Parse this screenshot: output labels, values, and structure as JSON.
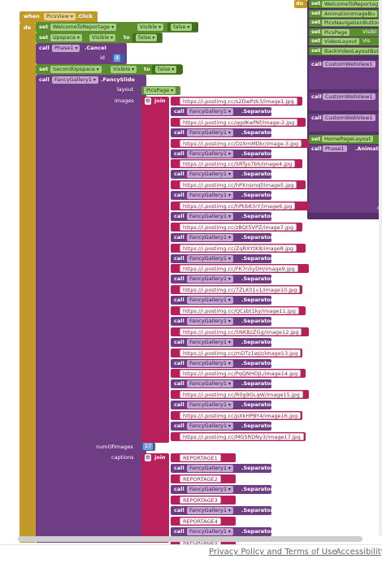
{
  "event": {
    "when": "when",
    "component": "PicsView",
    "event": ".Click",
    "do": "do"
  },
  "sets": [
    {
      "kw": "set",
      "component": "WelcomeToReportage",
      "prop": "Visible",
      "to": "to",
      "value": "false"
    },
    {
      "kw": "set",
      "component": "Upspace",
      "prop": "Visible",
      "to": "to",
      "value": "false"
    }
  ],
  "call_cancel": {
    "kw": "call",
    "component": "Phase1",
    "method": ".Cancel",
    "param": "id",
    "value": "4"
  },
  "set_second": {
    "kw": "set",
    "component": "SecondUpspace",
    "prop": "Visible",
    "to": "to",
    "value": "false"
  },
  "call_gallery": {
    "kw": "call",
    "component": "FancyGallery1",
    "method": ".FancySlide",
    "layout_label": "layout",
    "layout_value": "PicsPage",
    "images_label": "images",
    "join": "join"
  },
  "images": [
    {
      "url": "https://i.postimg.cc/s2DwPzk3/image1.jpg"
    },
    {
      "url": "https://i.postimg.cc/qgdKwfNf/image-2.jpg"
    },
    {
      "url": "https://i.postimg.cc/DzXmMDkr/image-3.jpg"
    },
    {
      "url": "https://i.postimg.cc/SRTys7bh/image4.jpg"
    },
    {
      "url": "https://i.postimg.cc/hPXnsmqf/image5.jpg"
    },
    {
      "url": "https://i.postimg.cc/hPkb83rY/image6.jpg"
    },
    {
      "url": "https://i.postimg.cc/zBQt5VPZ/image7.jpg"
    },
    {
      "url": "https://i.postimg.cc/ZqRXYtK8/image8.jpg"
    },
    {
      "url": "https://i.postimg.cc/FK7n5yDH/image9.jpg"
    },
    {
      "url": "https://i.postimg.cc/7ZLK01v1/image10.jpg"
    },
    {
      "url": "https://i.postimg.cc/QCsbt1ky/image11.jpg"
    },
    {
      "url": "https://i.postimg.cc/5NKBzZGg/image12.jpg"
    },
    {
      "url": "https://i.postimg.cc/mDTz1wJz/image13.jpg"
    },
    {
      "url": "https://i.postimg.cc/PqQNHDJL/image14.jpg"
    },
    {
      "url": "https://i.postimg.cc/R0g9GLqW/image15.jpg"
    },
    {
      "url": "https://i.postimg.cc/pXkHPBY4/image16.jpg"
    },
    {
      "url": "https://i.postimg.cc/MG5RDNy3/image17.jpg"
    }
  ],
  "separator": {
    "kw": "call",
    "component": "FancyGallery1",
    "method": ".Separator"
  },
  "num_images": {
    "label": "numOfImages",
    "value": "17"
  },
  "captions": {
    "label": "captions",
    "join": "join",
    "items": [
      "REPORTAGE1",
      "REPORTAGE2",
      "REPORTAGE3",
      "REPORTAGE4",
      "REPORTAGE5"
    ]
  },
  "right_block": {
    "do": "do",
    "sets": [
      {
        "kw": "set",
        "component": "WelcomeToReportag"
      },
      {
        "kw": "set",
        "component": "AnimationImageBu"
      },
      {
        "kw": "set",
        "component": "PicsNavigationButton"
      },
      {
        "kw": "set",
        "component": "PicsPage",
        "prop": "Visibl"
      },
      {
        "kw": "set",
        "component": "VideoLayout",
        "prop": "Vis"
      },
      {
        "kw": "set",
        "component": "BackVideoLayoutButt"
      }
    ],
    "webviews": [
      {
        "kw": "call",
        "component": "CustomWebView1"
      },
      {
        "kw": "call",
        "component": "CustomWebView1"
      },
      {
        "kw": "call",
        "component": "CustomWebView1"
      }
    ],
    "set_home": {
      "kw": "set",
      "component": "HomePageLayout"
    },
    "call_phase": {
      "kw": "call",
      "component": "Phase1",
      "method": ".AnimateO"
    },
    "trail": "n"
  },
  "footer": {
    "privacy": "Privacy Policy and Terms of Use",
    "accessibility": "Accessibility"
  }
}
